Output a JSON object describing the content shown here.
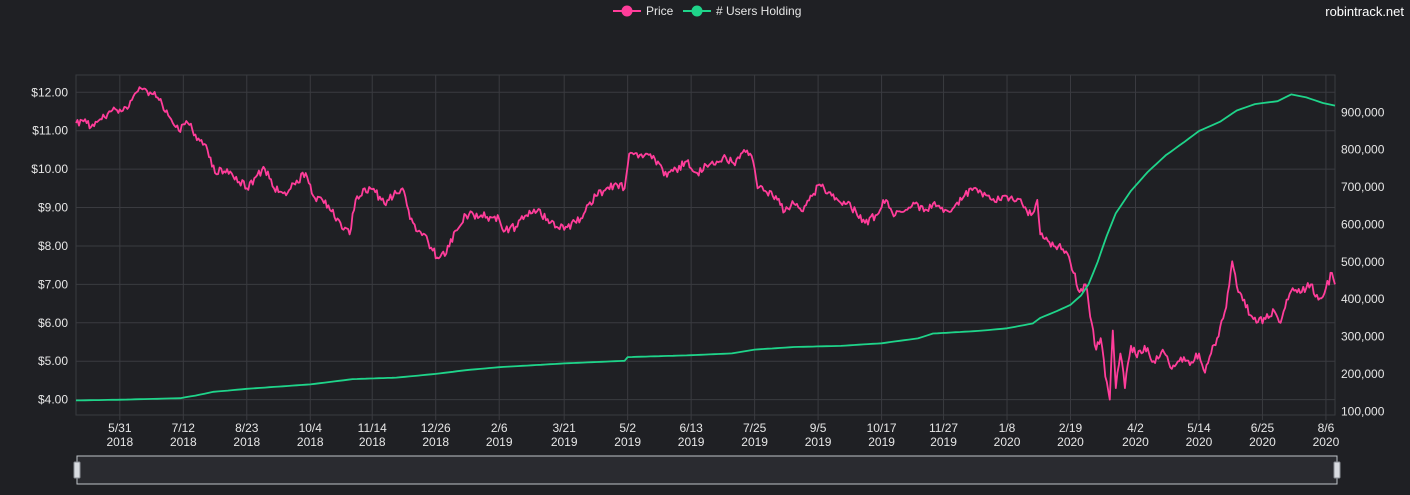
{
  "watermark": "robintrack.net",
  "colors": {
    "background": "#1f2024",
    "grid": "#3a3b40",
    "price": "#ff3d9a",
    "users": "#1fd48a",
    "text": "#e6e6e6",
    "slider_border": "#bfc3c9"
  },
  "chart_data": {
    "type": "line",
    "legend": {
      "position": "top-center",
      "entries": [
        "Price",
        "# Users Holding"
      ]
    },
    "grid": true,
    "x_ticks": [
      {
        "date": "2018-05-31",
        "line1": "5/31",
        "line2": "2018"
      },
      {
        "date": "2018-07-12",
        "line1": "7/12",
        "line2": "2018"
      },
      {
        "date": "2018-08-23",
        "line1": "8/23",
        "line2": "2018"
      },
      {
        "date": "2018-10-04",
        "line1": "10/4",
        "line2": "2018"
      },
      {
        "date": "2018-11-14",
        "line1": "11/14",
        "line2": "2018"
      },
      {
        "date": "2018-12-26",
        "line1": "12/26",
        "line2": "2018"
      },
      {
        "date": "2019-02-06",
        "line1": "2/6",
        "line2": "2019"
      },
      {
        "date": "2019-03-21",
        "line1": "3/21",
        "line2": "2019"
      },
      {
        "date": "2019-05-02",
        "line1": "5/2",
        "line2": "2019"
      },
      {
        "date": "2019-06-13",
        "line1": "6/13",
        "line2": "2019"
      },
      {
        "date": "2019-07-25",
        "line1": "7/25",
        "line2": "2019"
      },
      {
        "date": "2019-09-05",
        "line1": "9/5",
        "line2": "2019"
      },
      {
        "date": "2019-10-17",
        "line1": "10/17",
        "line2": "2019"
      },
      {
        "date": "2019-11-27",
        "line1": "11/27",
        "line2": "2019"
      },
      {
        "date": "2020-01-08",
        "line1": "1/8",
        "line2": "2020"
      },
      {
        "date": "2020-02-19",
        "line1": "2/19",
        "line2": "2020"
      },
      {
        "date": "2020-04-02",
        "line1": "4/2",
        "line2": "2020"
      },
      {
        "date": "2020-05-14",
        "line1": "5/14",
        "line2": "2020"
      },
      {
        "date": "2020-06-25",
        "line1": "6/25",
        "line2": "2020"
      },
      {
        "date": "2020-08-06",
        "line1": "8/6",
        "line2": "2020"
      }
    ],
    "x_range": [
      "2018-05-02",
      "2020-08-12"
    ],
    "y_left": {
      "range": [
        3.6,
        12.45
      ],
      "ticks": [
        4,
        5,
        6,
        7,
        8,
        9,
        10,
        11,
        12
      ],
      "tick_labels": [
        "$4.00",
        "$5.00",
        "$6.00",
        "$7.00",
        "$8.00",
        "$9.00",
        "$10.00",
        "$11.00",
        "$12.00"
      ]
    },
    "y_right": {
      "range": [
        90000,
        1000000
      ],
      "ticks": [
        100000,
        200000,
        300000,
        400000,
        500000,
        600000,
        700000,
        800000,
        900000
      ],
      "tick_labels": [
        "100,000",
        "200,000",
        "300,000",
        "400,000",
        "500,000",
        "600,000",
        "700,000",
        "800,000",
        "900,000"
      ]
    },
    "series": [
      {
        "name": "Price",
        "axis": "left",
        "points": [
          [
            "2018-05-02",
            11.2
          ],
          [
            "2018-05-08",
            11.3
          ],
          [
            "2018-05-12",
            11.1
          ],
          [
            "2018-05-18",
            11.3
          ],
          [
            "2018-05-25",
            11.5
          ],
          [
            "2018-06-01",
            11.5
          ],
          [
            "2018-06-08",
            11.8
          ],
          [
            "2018-06-14",
            12.1
          ],
          [
            "2018-06-20",
            12.0
          ],
          [
            "2018-06-26",
            11.8
          ],
          [
            "2018-07-02",
            11.4
          ],
          [
            "2018-07-09",
            11.0
          ],
          [
            "2018-07-15",
            11.2
          ],
          [
            "2018-07-22",
            10.8
          ],
          [
            "2018-07-28",
            10.5
          ],
          [
            "2018-08-02",
            9.9
          ],
          [
            "2018-08-10",
            10.0
          ],
          [
            "2018-08-16",
            9.8
          ],
          [
            "2018-08-23",
            9.5
          ],
          [
            "2018-08-29",
            9.8
          ],
          [
            "2018-09-04",
            10.0
          ],
          [
            "2018-09-10",
            9.5
          ],
          [
            "2018-09-17",
            9.4
          ],
          [
            "2018-09-24",
            9.6
          ],
          [
            "2018-10-01",
            9.9
          ],
          [
            "2018-10-06",
            9.3
          ],
          [
            "2018-10-12",
            9.2
          ],
          [
            "2018-10-18",
            8.9
          ],
          [
            "2018-10-24",
            8.6
          ],
          [
            "2018-10-30",
            8.3
          ],
          [
            "2018-11-03",
            9.2
          ],
          [
            "2018-11-09",
            9.5
          ],
          [
            "2018-11-16",
            9.4
          ],
          [
            "2018-11-22",
            9.1
          ],
          [
            "2018-11-28",
            9.3
          ],
          [
            "2018-12-04",
            9.5
          ],
          [
            "2018-12-09",
            8.7
          ],
          [
            "2018-12-15",
            8.4
          ],
          [
            "2018-12-21",
            8.1
          ],
          [
            "2018-12-27",
            7.7
          ],
          [
            "2019-01-02",
            7.8
          ],
          [
            "2019-01-08",
            8.4
          ],
          [
            "2019-01-15",
            8.8
          ],
          [
            "2019-01-25",
            8.8
          ],
          [
            "2019-02-06",
            8.7
          ],
          [
            "2019-02-10",
            8.4
          ],
          [
            "2019-02-17",
            8.5
          ],
          [
            "2019-02-24",
            8.8
          ],
          [
            "2019-03-03",
            8.9
          ],
          [
            "2019-03-10",
            8.7
          ],
          [
            "2019-03-16",
            8.5
          ],
          [
            "2019-03-22",
            8.5
          ],
          [
            "2019-03-29",
            8.6
          ],
          [
            "2019-04-04",
            8.9
          ],
          [
            "2019-04-11",
            9.3
          ],
          [
            "2019-04-18",
            9.5
          ],
          [
            "2019-04-25",
            9.6
          ],
          [
            "2019-04-30",
            9.5
          ],
          [
            "2019-05-03",
            10.4
          ],
          [
            "2019-05-09",
            10.3
          ],
          [
            "2019-05-15",
            10.4
          ],
          [
            "2019-05-22",
            10.2
          ],
          [
            "2019-05-28",
            9.8
          ],
          [
            "2019-06-03",
            10.0
          ],
          [
            "2019-06-10",
            10.2
          ],
          [
            "2019-06-17",
            9.9
          ],
          [
            "2019-06-23",
            10.1
          ],
          [
            "2019-06-30",
            10.2
          ],
          [
            "2019-07-06",
            10.3
          ],
          [
            "2019-07-12",
            10.1
          ],
          [
            "2019-07-18",
            10.5
          ],
          [
            "2019-07-24",
            10.2
          ],
          [
            "2019-07-27",
            9.5
          ],
          [
            "2019-08-02",
            9.4
          ],
          [
            "2019-08-08",
            9.3
          ],
          [
            "2019-08-14",
            8.9
          ],
          [
            "2019-08-20",
            9.1
          ],
          [
            "2019-08-26",
            8.9
          ],
          [
            "2019-09-01",
            9.3
          ],
          [
            "2019-09-06",
            9.6
          ],
          [
            "2019-09-12",
            9.4
          ],
          [
            "2019-09-18",
            9.2
          ],
          [
            "2019-09-24",
            9.1
          ],
          [
            "2019-09-30",
            8.9
          ],
          [
            "2019-10-06",
            8.6
          ],
          [
            "2019-10-13",
            8.8
          ],
          [
            "2019-10-20",
            9.2
          ],
          [
            "2019-10-26",
            8.8
          ],
          [
            "2019-11-01",
            8.9
          ],
          [
            "2019-11-08",
            9.1
          ],
          [
            "2019-11-14",
            8.9
          ],
          [
            "2019-11-20",
            9.1
          ],
          [
            "2019-11-26",
            9.0
          ],
          [
            "2019-12-02",
            8.9
          ],
          [
            "2019-12-09",
            9.2
          ],
          [
            "2019-12-15",
            9.5
          ],
          [
            "2019-12-22",
            9.4
          ],
          [
            "2019-12-29",
            9.2
          ],
          [
            "2020-01-05",
            9.3
          ],
          [
            "2020-01-12",
            9.2
          ],
          [
            "2020-01-18",
            9.1
          ],
          [
            "2020-01-24",
            8.8
          ],
          [
            "2020-01-28",
            9.2
          ],
          [
            "2020-01-30",
            8.3
          ],
          [
            "2020-02-05",
            8.1
          ],
          [
            "2020-02-11",
            8.0
          ],
          [
            "2020-02-17",
            7.8
          ],
          [
            "2020-02-21",
            7.3
          ],
          [
            "2020-02-25",
            6.8
          ],
          [
            "2020-02-29",
            7.0
          ],
          [
            "2020-03-04",
            6.0
          ],
          [
            "2020-03-07",
            5.3
          ],
          [
            "2020-03-10",
            5.6
          ],
          [
            "2020-03-13",
            4.6
          ],
          [
            "2020-03-16",
            4.0
          ],
          [
            "2020-03-18",
            5.8
          ],
          [
            "2020-03-20",
            4.3
          ],
          [
            "2020-03-23",
            5.2
          ],
          [
            "2020-03-26",
            4.3
          ],
          [
            "2020-03-30",
            5.4
          ],
          [
            "2020-04-03",
            5.1
          ],
          [
            "2020-04-08",
            5.4
          ],
          [
            "2020-04-14",
            5.0
          ],
          [
            "2020-04-20",
            5.3
          ],
          [
            "2020-04-26",
            4.8
          ],
          [
            "2020-05-02",
            5.1
          ],
          [
            "2020-05-08",
            4.9
          ],
          [
            "2020-05-14",
            5.2
          ],
          [
            "2020-05-18",
            4.7
          ],
          [
            "2020-05-22",
            5.2
          ],
          [
            "2020-05-26",
            5.6
          ],
          [
            "2020-06-01",
            6.4
          ],
          [
            "2020-06-05",
            7.6
          ],
          [
            "2020-06-09",
            6.8
          ],
          [
            "2020-06-13",
            6.6
          ],
          [
            "2020-06-17",
            6.2
          ],
          [
            "2020-06-21",
            6.0
          ],
          [
            "2020-06-27",
            6.1
          ],
          [
            "2020-07-03",
            6.3
          ],
          [
            "2020-07-07",
            6.0
          ],
          [
            "2020-07-11",
            6.6
          ],
          [
            "2020-07-15",
            6.9
          ],
          [
            "2020-07-21",
            6.8
          ],
          [
            "2020-07-27",
            7.0
          ],
          [
            "2020-08-01",
            6.6
          ],
          [
            "2020-08-06",
            6.9
          ],
          [
            "2020-08-10",
            7.3
          ],
          [
            "2020-08-12",
            7.0
          ]
        ]
      },
      {
        "name": "# Users Holding",
        "axis": "right",
        "points": [
          [
            "2018-05-02",
            129000
          ],
          [
            "2018-06-01",
            131000
          ],
          [
            "2018-07-10",
            135000
          ],
          [
            "2018-07-20",
            142000
          ],
          [
            "2018-08-01",
            152000
          ],
          [
            "2018-08-23",
            160000
          ],
          [
            "2018-10-04",
            172000
          ],
          [
            "2018-10-20",
            180000
          ],
          [
            "2018-11-01",
            186000
          ],
          [
            "2018-11-30",
            190000
          ],
          [
            "2018-12-26",
            200000
          ],
          [
            "2019-01-15",
            210000
          ],
          [
            "2019-02-06",
            218000
          ],
          [
            "2019-03-21",
            228000
          ],
          [
            "2019-04-30",
            235000
          ],
          [
            "2019-05-02",
            245000
          ],
          [
            "2019-06-13",
            250000
          ],
          [
            "2019-07-10",
            255000
          ],
          [
            "2019-07-25",
            265000
          ],
          [
            "2019-08-20",
            272000
          ],
          [
            "2019-09-20",
            275000
          ],
          [
            "2019-10-17",
            282000
          ],
          [
            "2019-11-10",
            295000
          ],
          [
            "2019-11-20",
            308000
          ],
          [
            "2019-12-20",
            315000
          ],
          [
            "2020-01-08",
            322000
          ],
          [
            "2020-01-25",
            335000
          ],
          [
            "2020-01-30",
            350000
          ],
          [
            "2020-02-10",
            368000
          ],
          [
            "2020-02-19",
            385000
          ],
          [
            "2020-02-26",
            410000
          ],
          [
            "2020-03-02",
            440000
          ],
          [
            "2020-03-08",
            500000
          ],
          [
            "2020-03-14",
            570000
          ],
          [
            "2020-03-20",
            630000
          ],
          [
            "2020-03-30",
            690000
          ],
          [
            "2020-04-10",
            740000
          ],
          [
            "2020-04-22",
            785000
          ],
          [
            "2020-05-04",
            820000
          ],
          [
            "2020-05-14",
            850000
          ],
          [
            "2020-05-28",
            875000
          ],
          [
            "2020-06-08",
            905000
          ],
          [
            "2020-06-20",
            922000
          ],
          [
            "2020-07-05",
            930000
          ],
          [
            "2020-07-14",
            948000
          ],
          [
            "2020-07-24",
            940000
          ],
          [
            "2020-08-04",
            925000
          ],
          [
            "2020-08-12",
            918000
          ]
        ]
      }
    ]
  },
  "range_slider": {
    "present": true
  }
}
